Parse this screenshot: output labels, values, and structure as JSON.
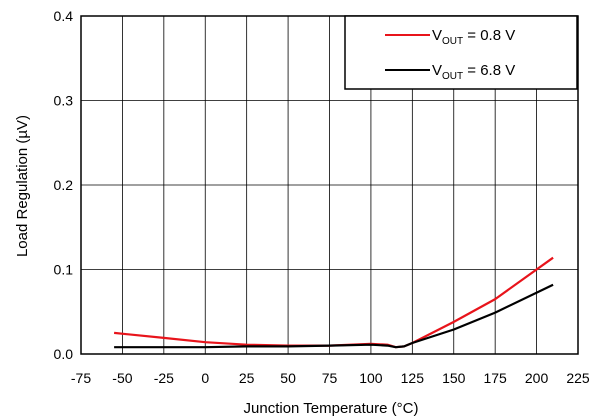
{
  "chart_data": {
    "type": "line",
    "title": "",
    "xlabel": "Junction Temperature (°C)",
    "ylabel": "Load Regulation (µV)",
    "xlim": [
      -75,
      225
    ],
    "ylim": [
      0,
      0.4
    ],
    "x_ticks": [
      -75,
      -50,
      -25,
      0,
      25,
      50,
      75,
      100,
      125,
      150,
      175,
      200,
      225
    ],
    "y_ticks": [
      0.0,
      0.1,
      0.2,
      0.3,
      0.4
    ],
    "x_tick_labels": [
      "-75",
      "-50",
      "-25",
      "0",
      "25",
      "50",
      "75",
      "100",
      "125",
      "150",
      "175",
      "200",
      "225"
    ],
    "y_tick_labels": [
      "0.0",
      "0.1",
      "0.2",
      "0.3",
      "0.4"
    ],
    "grid": true,
    "legend_position": "top-right",
    "series": [
      {
        "name_prefix": "V",
        "name_sub": "OUT",
        "name_suffix": " = 0.8 V",
        "color": "#e8141b",
        "x": [
          -55,
          -25,
          0,
          25,
          50,
          75,
          100,
          110,
          115,
          120,
          125,
          150,
          175,
          210
        ],
        "y": [
          0.025,
          0.019,
          0.014,
          0.011,
          0.01,
          0.01,
          0.012,
          0.011,
          0.008,
          0.009,
          0.013,
          0.038,
          0.065,
          0.114
        ]
      },
      {
        "name_prefix": "V",
        "name_sub": "OUT",
        "name_suffix": " = 6.8 V",
        "color": "#000000",
        "x": [
          -55,
          -25,
          0,
          25,
          50,
          75,
          100,
          110,
          115,
          120,
          125,
          150,
          175,
          210
        ],
        "y": [
          0.008,
          0.008,
          0.008,
          0.009,
          0.009,
          0.01,
          0.011,
          0.01,
          0.008,
          0.009,
          0.013,
          0.029,
          0.049,
          0.082
        ]
      }
    ]
  }
}
